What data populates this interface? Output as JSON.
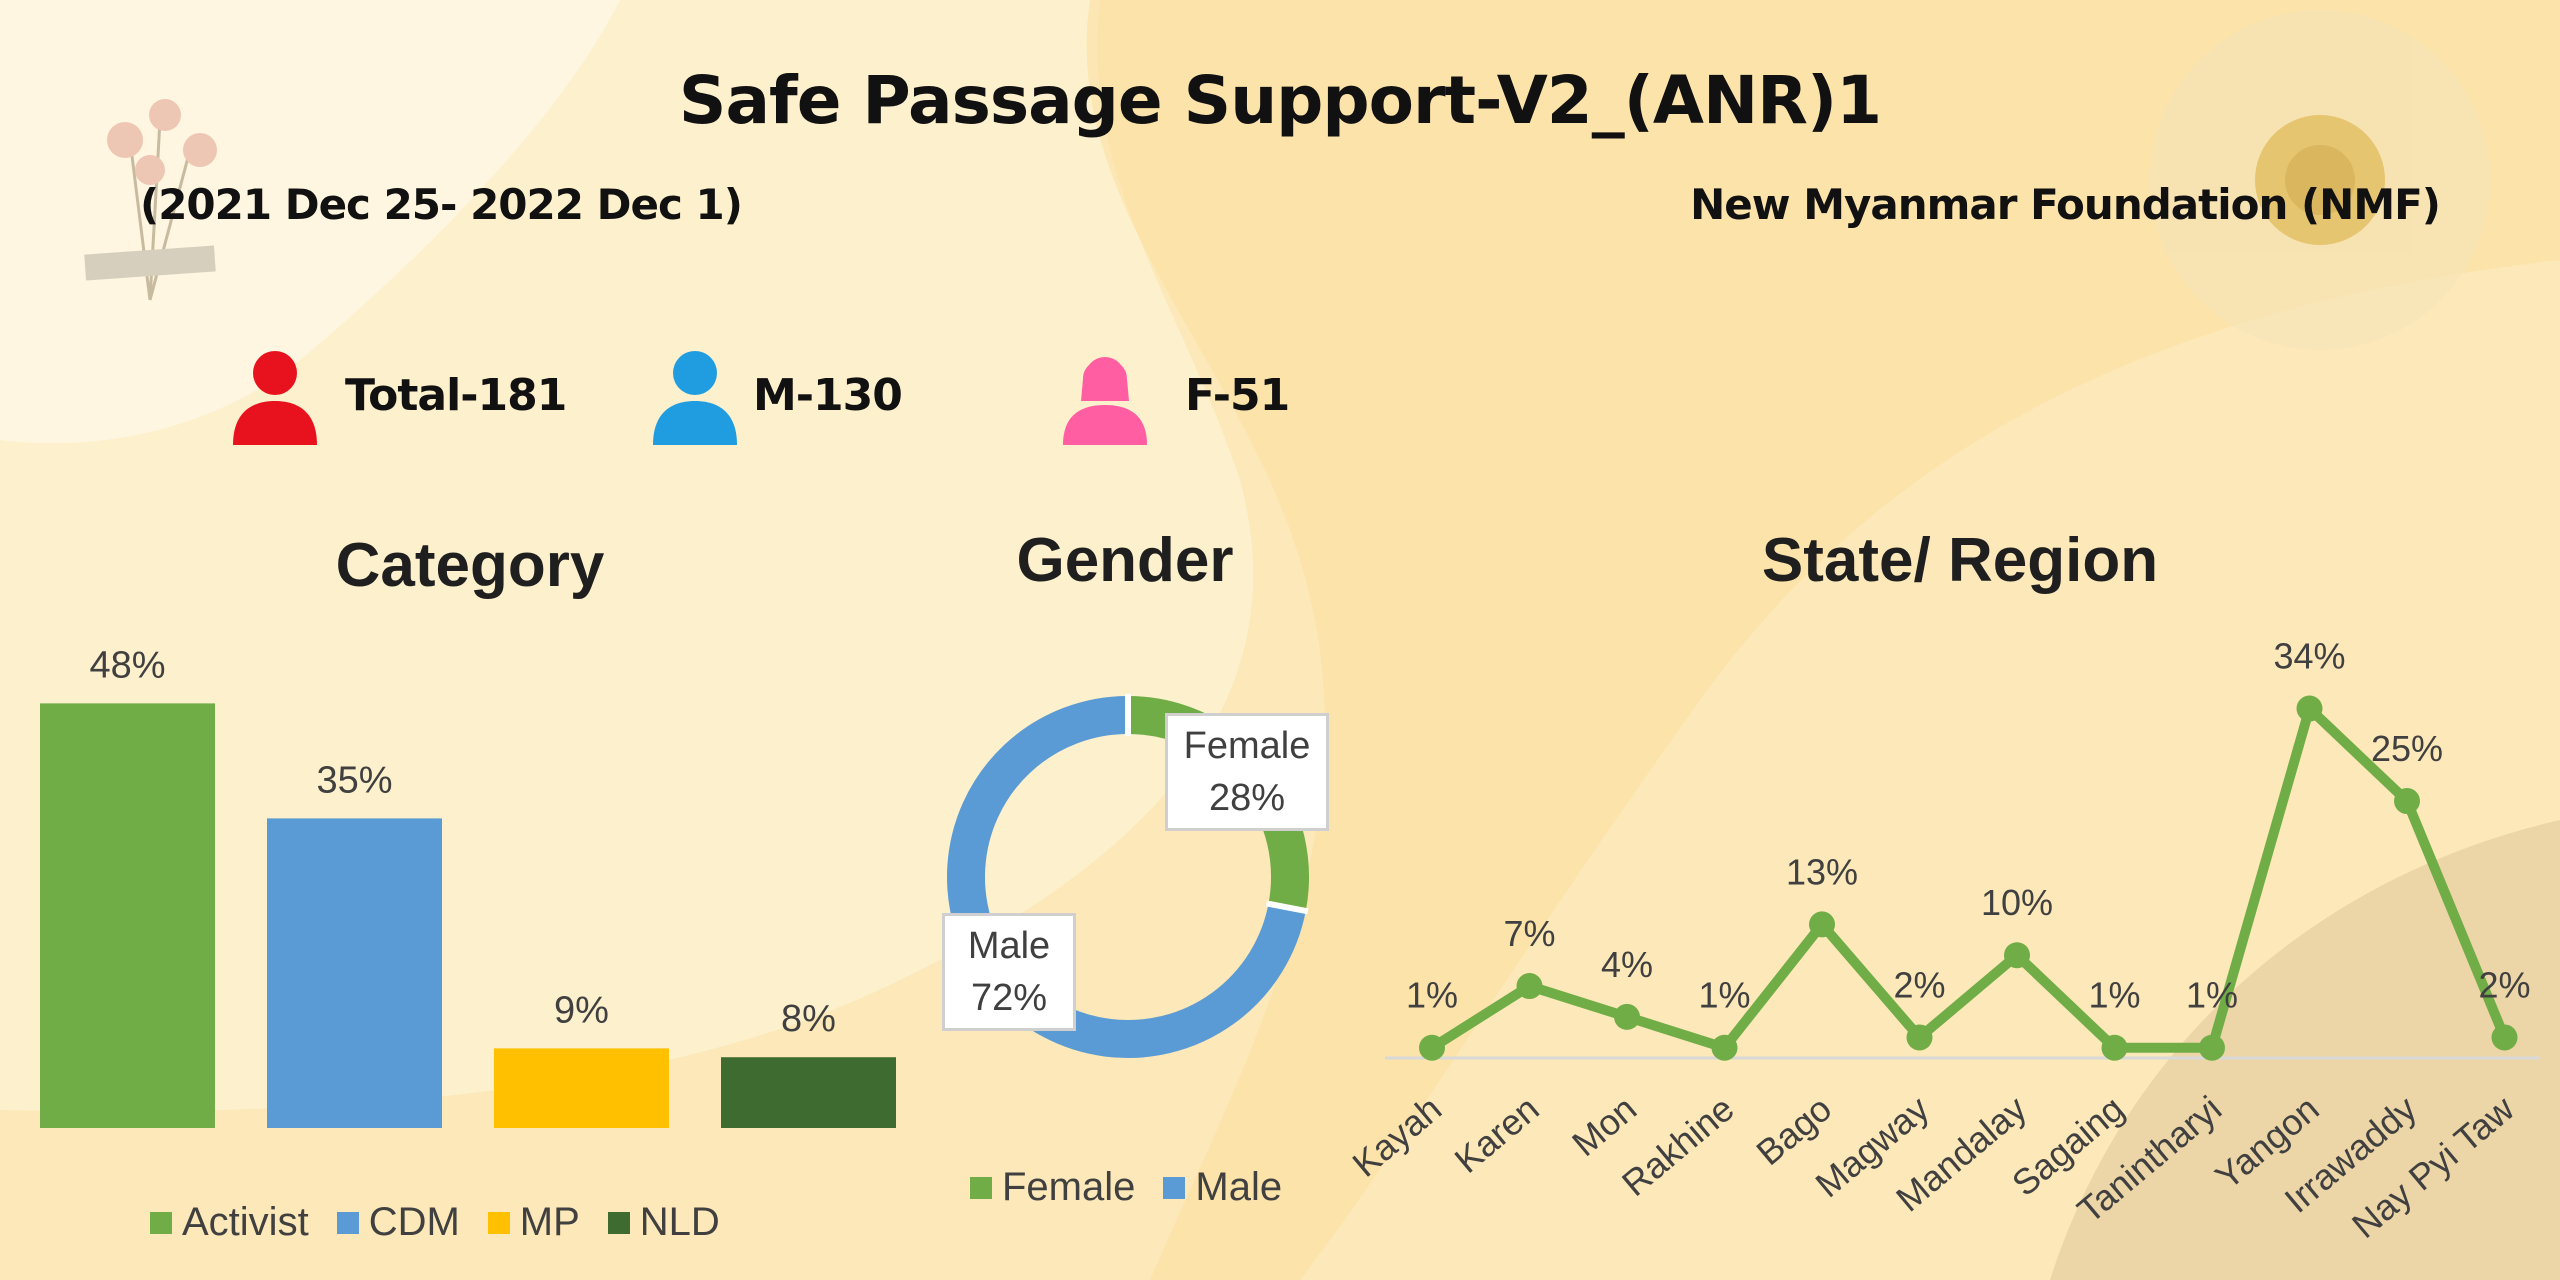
{
  "header": {
    "title": "Safe Passage Support-V2_(ANR)1",
    "date_range": "(2021 Dec 25- 2022 Dec 1)",
    "organization": "New Myanmar Foundation (NMF)"
  },
  "stats": {
    "total": "Total-181",
    "male": "M-130",
    "female": "F-51",
    "total_icon": "person-icon",
    "male_icon": "man-icon",
    "female_icon": "woman-icon",
    "total_color": "#e8121f",
    "male_color": "#1f9de0",
    "female_color": "#ff5fa2"
  },
  "chart_data": [
    {
      "type": "bar",
      "title": "Category",
      "categories": [
        "Activist",
        "CDM",
        "MP",
        "NLD"
      ],
      "values": [
        48,
        35,
        9,
        8
      ],
      "value_labels": [
        "48%",
        "35%",
        "9%",
        "8%"
      ],
      "colors": [
        "#70ad47",
        "#5b9bd5",
        "#ffc000",
        "#3e6b2f"
      ],
      "ylim": [
        0,
        52
      ],
      "legend": "bottom",
      "grid": false
    },
    {
      "type": "pie",
      "title": "Gender",
      "labels": [
        "Female",
        "Male"
      ],
      "values": [
        28,
        72
      ],
      "value_labels": [
        "28%",
        "72%"
      ],
      "colors": [
        "#70ad47",
        "#5b9bd5"
      ],
      "legend": "bottom"
    },
    {
      "type": "line",
      "title": "State/ Region",
      "categories": [
        "Kayah",
        "Karen",
        "Mon",
        "Rakhine",
        "Bago",
        "Magway",
        "Mandalay",
        "Sagaing",
        "Tanintharyi",
        "Yangon",
        "Irrawaddy",
        "Nay Pyi Taw"
      ],
      "values": [
        1,
        7,
        4,
        1,
        13,
        2,
        10,
        1,
        1,
        34,
        25,
        2
      ],
      "value_labels": [
        "1%",
        "7%",
        "4%",
        "1%",
        "13%",
        "2%",
        "10%",
        "1%",
        "1%",
        "34%",
        "25%",
        "2%"
      ],
      "color": "#70ad47",
      "ylim": [
        0,
        36
      ],
      "grid": false
    }
  ]
}
